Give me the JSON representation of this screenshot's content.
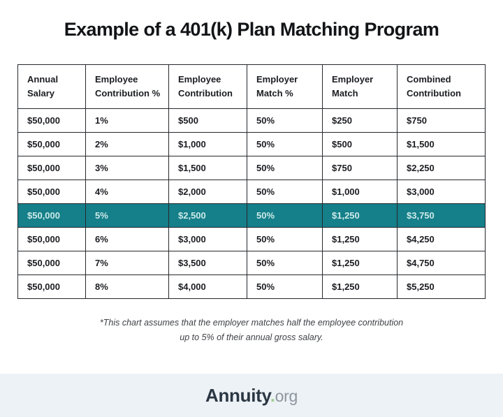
{
  "title": "Example of a 401(k) Plan Matching Program",
  "table": {
    "display_headers": [
      "Annual\nSalary",
      "Employee\nContribution %",
      "Employee\nContribution",
      "Employer\nMatch %",
      "Employer\nMatch",
      "Combined\nContribution"
    ]
  },
  "chart_data": {
    "type": "table",
    "title": "Example of a 401(k) Plan Matching Program",
    "columns": [
      "Annual Salary",
      "Employee Contribution %",
      "Employee Contribution",
      "Employer Match %",
      "Employer Match",
      "Combined Contribution"
    ],
    "rows": [
      [
        "$50,000",
        "1%",
        "$500",
        "50%",
        "$250",
        "$750"
      ],
      [
        "$50,000",
        "2%",
        "$1,000",
        "50%",
        "$500",
        "$1,500"
      ],
      [
        "$50,000",
        "3%",
        "$1,500",
        "50%",
        "$750",
        "$2,250"
      ],
      [
        "$50,000",
        "4%",
        "$2,000",
        "50%",
        "$1,000",
        "$3,000"
      ],
      [
        "$50,000",
        "5%",
        "$2,500",
        "50%",
        "$1,250",
        "$3,750"
      ],
      [
        "$50,000",
        "6%",
        "$3,000",
        "50%",
        "$1,250",
        "$4,250"
      ],
      [
        "$50,000",
        "7%",
        "$3,500",
        "50%",
        "$1,250",
        "$4,750"
      ],
      [
        "$50,000",
        "8%",
        "$4,000",
        "50%",
        "$1,250",
        "$5,250"
      ]
    ],
    "highlighted_row_index": 4,
    "footnote": "*This chart assumes that the employer matches half the employee contribution up to 5% of their annual gross salary."
  },
  "footnote_display": "*This chart assumes that the employer matches half the employee contribution\nup to 5% of their annual gross salary.",
  "footer": {
    "logo_name": "Annuity",
    "logo_dot": ".",
    "logo_tld": "org"
  },
  "colors": {
    "highlight_teal": "#157f8a",
    "highlight_text": "#cdeae8",
    "footer_bg": "#edf2f6",
    "logo_dot_green": "#a3cf94"
  }
}
